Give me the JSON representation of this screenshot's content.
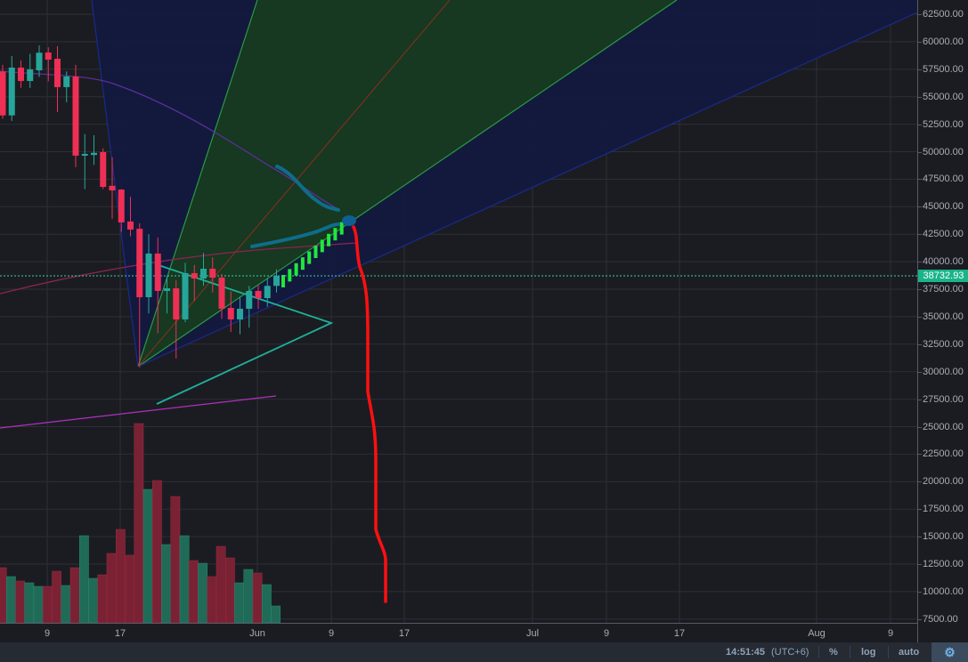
{
  "chart_data": {
    "type": "candlestick",
    "title": "",
    "ylim": [
      7500,
      62500
    ],
    "grid": true,
    "y_ticks": [
      "62500.00",
      "60000.00",
      "57500.00",
      "55000.00",
      "52500.00",
      "50000.00",
      "47500.00",
      "45000.00",
      "42500.00",
      "40000.00",
      "37500.00",
      "35000.00",
      "32500.00",
      "30000.00",
      "27500.00",
      "25000.00",
      "22500.00",
      "20000.00",
      "17500.00",
      "15000.00",
      "12500.00",
      "10000.00",
      "7500.00"
    ],
    "x_ticks": [
      "9",
      "17",
      "Jun",
      "9",
      "17",
      "Jul",
      "9",
      "17",
      "Aug",
      "9"
    ],
    "current_price": "38732.93",
    "colors": {
      "up": "#26a69a",
      "down": "#ef2f55",
      "up_volume": "#1f6b58",
      "down_volume": "#7a2234",
      "fan_blue": "#13193f",
      "fan_green": "#173a22",
      "annotation_red": "#ff1010",
      "annotation_teal": "#0e6d8a",
      "current_price": "#19b48a"
    },
    "candles": [
      {
        "date": "May 4",
        "o": 57300,
        "h": 57900,
        "l": 53000,
        "c": 53300,
        "v": 62
      },
      {
        "date": "May 5",
        "o": 53300,
        "h": 58700,
        "l": 52800,
        "c": 57650,
        "v": 52
      },
      {
        "date": "May 6",
        "o": 57650,
        "h": 58300,
        "l": 55800,
        "c": 56430,
        "v": 47
      },
      {
        "date": "May 7",
        "o": 56430,
        "h": 58900,
        "l": 55800,
        "c": 57480,
        "v": 45
      },
      {
        "date": "May 8",
        "o": 57400,
        "h": 59670,
        "l": 56800,
        "c": 59000,
        "v": 41
      },
      {
        "date": "May 9",
        "o": 59020,
        "h": 59500,
        "l": 56400,
        "c": 58370,
        "v": 41
      },
      {
        "date": "May 10",
        "o": 58450,
        "h": 59600,
        "l": 53600,
        "c": 55870,
        "v": 58
      },
      {
        "date": "May 11",
        "o": 55870,
        "h": 57300,
        "l": 54500,
        "c": 56840,
        "v": 42
      },
      {
        "date": "May 12",
        "o": 56840,
        "h": 57900,
        "l": 48600,
        "c": 49640,
        "v": 62
      },
      {
        "date": "May 13",
        "o": 49700,
        "h": 51600,
        "l": 46600,
        "c": 49800,
        "v": 98
      },
      {
        "date": "May 14",
        "o": 49700,
        "h": 51500,
        "l": 48800,
        "c": 49900,
        "v": 50
      },
      {
        "date": "May 15",
        "o": 49960,
        "h": 50300,
        "l": 46600,
        "c": 46800,
        "v": 54
      },
      {
        "date": "May 16",
        "o": 46900,
        "h": 49500,
        "l": 43900,
        "c": 46480,
        "v": 78
      },
      {
        "date": "May 17",
        "o": 46560,
        "h": 46600,
        "l": 42700,
        "c": 43570,
        "v": 105
      },
      {
        "date": "May 18",
        "o": 43650,
        "h": 45900,
        "l": 42300,
        "c": 42920,
        "v": 76
      },
      {
        "date": "May 19",
        "o": 42990,
        "h": 43500,
        "l": 30400,
        "c": 36770,
        "v": 224
      },
      {
        "date": "May 20",
        "o": 36770,
        "h": 42500,
        "l": 35300,
        "c": 40740,
        "v": 150
      },
      {
        "date": "May 21",
        "o": 40740,
        "h": 42200,
        "l": 33500,
        "c": 37340,
        "v": 160
      },
      {
        "date": "May 22",
        "o": 37340,
        "h": 38700,
        "l": 35300,
        "c": 37580,
        "v": 88
      },
      {
        "date": "May 23",
        "o": 37580,
        "h": 38300,
        "l": 31200,
        "c": 34750,
        "v": 142
      },
      {
        "date": "May 24",
        "o": 34750,
        "h": 39900,
        "l": 34500,
        "c": 38960,
        "v": 98
      },
      {
        "date": "May 25",
        "o": 38960,
        "h": 39700,
        "l": 36400,
        "c": 38470,
        "v": 70
      },
      {
        "date": "May 26",
        "o": 38470,
        "h": 40800,
        "l": 37800,
        "c": 39360,
        "v": 67
      },
      {
        "date": "May 27",
        "o": 39360,
        "h": 40400,
        "l": 37200,
        "c": 38550,
        "v": 52
      },
      {
        "date": "May 28",
        "o": 38550,
        "h": 38900,
        "l": 34800,
        "c": 35720,
        "v": 86
      },
      {
        "date": "May 29",
        "o": 35800,
        "h": 37300,
        "l": 33600,
        "c": 34750,
        "v": 73
      },
      {
        "date": "May 30",
        "o": 34750,
        "h": 36800,
        "l": 33400,
        "c": 35720,
        "v": 45
      },
      {
        "date": "May 31",
        "o": 35720,
        "h": 37800,
        "l": 34000,
        "c": 37340,
        "v": 60
      },
      {
        "date": "Jun 1",
        "o": 37340,
        "h": 37900,
        "l": 35700,
        "c": 36690,
        "v": 56
      },
      {
        "date": "Jun 2",
        "o": 36690,
        "h": 38500,
        "l": 35900,
        "c": 37800,
        "v": 43
      },
      {
        "date": "Jun 3",
        "o": 37800,
        "h": 39300,
        "l": 37200,
        "c": 38733,
        "v": 19
      }
    ]
  },
  "status_bar": {
    "time": "14:51:45",
    "timezone": "(UTC+6)",
    "percent_label": "%",
    "log_label": "log",
    "auto_label": "auto",
    "settings_icon": "gear-icon"
  }
}
